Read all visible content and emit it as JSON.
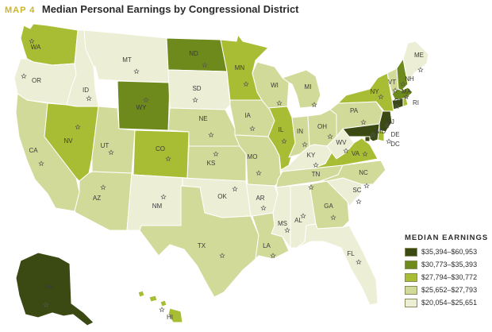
{
  "header": {
    "kicker": "MAP 4",
    "title": "Median Personal Earnings by Congressional District"
  },
  "colors": {
    "c1": "#3a4a12",
    "c2": "#6f8a1c",
    "c3": "#a9bd34",
    "c4": "#d2da9a",
    "c5": "#ecefd5",
    "border": "#ffffff",
    "outline": "#9aa27a"
  },
  "legend": {
    "title": "MEDIAN EARNINGS",
    "items": [
      {
        "label": "$35,394–$60,953",
        "color": "#3a4a12"
      },
      {
        "label": "$30,773–$35,393",
        "color": "#6f8a1c"
      },
      {
        "label": "$27,794–$30,772",
        "color": "#a9bd34"
      },
      {
        "label": "$25,652–$27,793",
        "color": "#d2da9a"
      },
      {
        "label": "$20,054–$25,651",
        "color": "#ecefd5"
      }
    ]
  },
  "states": [
    {
      "abbr": "WA",
      "cls": "c3"
    },
    {
      "abbr": "OR",
      "cls": "c5"
    },
    {
      "abbr": "CA",
      "cls": "c4"
    },
    {
      "abbr": "ID",
      "cls": "c5"
    },
    {
      "abbr": "NV",
      "cls": "c3"
    },
    {
      "abbr": "MT",
      "cls": "c5"
    },
    {
      "abbr": "WY",
      "cls": "c2"
    },
    {
      "abbr": "UT",
      "cls": "c4"
    },
    {
      "abbr": "AZ",
      "cls": "c4"
    },
    {
      "abbr": "CO",
      "cls": "c3"
    },
    {
      "abbr": "NM",
      "cls": "c5"
    },
    {
      "abbr": "ND",
      "cls": "c2"
    },
    {
      "abbr": "SD",
      "cls": "c5"
    },
    {
      "abbr": "NE",
      "cls": "c4"
    },
    {
      "abbr": "KS",
      "cls": "c4"
    },
    {
      "abbr": "OK",
      "cls": "c5"
    },
    {
      "abbr": "TX",
      "cls": "c4"
    },
    {
      "abbr": "MN",
      "cls": "c3"
    },
    {
      "abbr": "IA",
      "cls": "c4"
    },
    {
      "abbr": "MO",
      "cls": "c4"
    },
    {
      "abbr": "AR",
      "cls": "c5"
    },
    {
      "abbr": "LA",
      "cls": "c4"
    },
    {
      "abbr": "WI",
      "cls": "c4"
    },
    {
      "abbr": "IL",
      "cls": "c3"
    },
    {
      "abbr": "MS",
      "cls": "c5"
    },
    {
      "abbr": "MI",
      "cls": "c4"
    },
    {
      "abbr": "IN",
      "cls": "c4"
    },
    {
      "abbr": "KY",
      "cls": "c5"
    },
    {
      "abbr": "TN",
      "cls": "c4"
    },
    {
      "abbr": "AL",
      "cls": "c5"
    },
    {
      "abbr": "OH",
      "cls": "c4"
    },
    {
      "abbr": "WV",
      "cls": "c5"
    },
    {
      "abbr": "GA",
      "cls": "c4"
    },
    {
      "abbr": "FL",
      "cls": "c5"
    },
    {
      "abbr": "SC",
      "cls": "c5"
    },
    {
      "abbr": "NC",
      "cls": "c4"
    },
    {
      "abbr": "VA",
      "cls": "c3"
    },
    {
      "abbr": "PA",
      "cls": "c4"
    },
    {
      "abbr": "NY",
      "cls": "c3"
    },
    {
      "abbr": "ME",
      "cls": "c5"
    },
    {
      "abbr": "VT",
      "cls": "c4"
    },
    {
      "abbr": "NH",
      "cls": "c2"
    },
    {
      "abbr": "MA",
      "cls": "c2"
    },
    {
      "abbr": "CT",
      "cls": "c1"
    },
    {
      "abbr": "RI",
      "cls": "c3"
    },
    {
      "abbr": "NJ",
      "cls": "c1"
    },
    {
      "abbr": "DE",
      "cls": "c3"
    },
    {
      "abbr": "MD",
      "cls": "c1"
    },
    {
      "abbr": "DC",
      "cls": "c1"
    },
    {
      "abbr": "AK",
      "cls": "c1"
    },
    {
      "abbr": "HI",
      "cls": "c3"
    }
  ]
}
